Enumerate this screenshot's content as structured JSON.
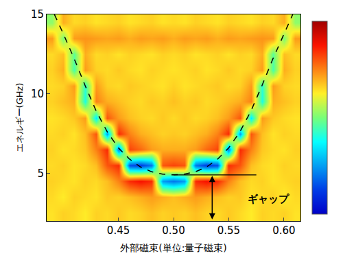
{
  "chart_data": {
    "type": "heatmap",
    "x_label": "外部磁束(単位:量子磁束)",
    "y_label": "エネルギー(GHz)",
    "x": [
      0.39,
      0.4,
      0.41,
      0.42,
      0.43,
      0.44,
      0.45,
      0.46,
      0.47,
      0.48,
      0.49,
      0.5,
      0.51,
      0.52,
      0.53,
      0.54,
      0.55,
      0.56,
      0.57,
      0.58,
      0.59,
      0.6,
      0.61
    ],
    "y": [
      2.5,
      3.5,
      4.5,
      5.5,
      6.5,
      7.5,
      8.5,
      9.5,
      10.5,
      11.5,
      12.5,
      13.5,
      14.5
    ],
    "z": [
      [
        64,
        66,
        65,
        63,
        66,
        65,
        67,
        65,
        66,
        68,
        66,
        67,
        66,
        68,
        66,
        65,
        67,
        65,
        63,
        66,
        65,
        66,
        64
      ],
      [
        65,
        63,
        66,
        65,
        64,
        67,
        66,
        68,
        70,
        72,
        70,
        68,
        70,
        72,
        70,
        68,
        66,
        67,
        64,
        65,
        66,
        63,
        65
      ],
      [
        66,
        65,
        64,
        66,
        65,
        68,
        75,
        85,
        88,
        85,
        25,
        20,
        25,
        85,
        88,
        85,
        75,
        68,
        65,
        66,
        64,
        65,
        66
      ],
      [
        65,
        66,
        64,
        65,
        68,
        80,
        85,
        15,
        12,
        20,
        80,
        82,
        80,
        20,
        12,
        15,
        85,
        80,
        68,
        65,
        64,
        66,
        65
      ],
      [
        66,
        64,
        65,
        67,
        75,
        85,
        20,
        82,
        78,
        72,
        70,
        70,
        70,
        72,
        78,
        82,
        20,
        85,
        75,
        67,
        65,
        64,
        66
      ],
      [
        65,
        66,
        64,
        68,
        80,
        25,
        85,
        75,
        70,
        68,
        66,
        67,
        66,
        68,
        70,
        75,
        85,
        25,
        80,
        68,
        64,
        66,
        65
      ],
      [
        64,
        65,
        67,
        72,
        35,
        80,
        72,
        68,
        66,
        65,
        67,
        65,
        67,
        65,
        66,
        68,
        72,
        80,
        35,
        72,
        67,
        65,
        64
      ],
      [
        66,
        68,
        70,
        40,
        75,
        70,
        68,
        66,
        65,
        67,
        66,
        68,
        66,
        67,
        65,
        66,
        68,
        70,
        75,
        40,
        70,
        68,
        66
      ],
      [
        65,
        66,
        72,
        42,
        72,
        66,
        65,
        67,
        66,
        65,
        64,
        66,
        64,
        65,
        66,
        67,
        65,
        66,
        72,
        42,
        72,
        66,
        65
      ],
      [
        66,
        70,
        45,
        72,
        66,
        65,
        67,
        65,
        64,
        66,
        65,
        64,
        65,
        66,
        64,
        65,
        67,
        65,
        66,
        72,
        45,
        70,
        66
      ],
      [
        65,
        68,
        47,
        70,
        65,
        66,
        64,
        66,
        65,
        64,
        66,
        65,
        66,
        64,
        65,
        66,
        64,
        66,
        65,
        70,
        47,
        68,
        65
      ],
      [
        72,
        50,
        72,
        73,
        72,
        71,
        72,
        70,
        72,
        71,
        72,
        70,
        72,
        71,
        72,
        70,
        72,
        71,
        72,
        73,
        72,
        50,
        72
      ],
      [
        52,
        70,
        65,
        66,
        64,
        65,
        66,
        64,
        65,
        66,
        64,
        65,
        64,
        66,
        65,
        64,
        66,
        65,
        64,
        66,
        65,
        70,
        52
      ]
    ],
    "zlim": [
      0,
      100
    ],
    "xlim": [
      0.385,
      0.615
    ],
    "xticks": [
      0.45,
      {
        "value": 0.5,
        "label": "0.50"
      },
      0.55,
      {
        "value": 0.6,
        "label": "0.60"
      }
    ],
    "ylim": [
      2,
      15
    ],
    "yticks": [
      5,
      10,
      15
    ],
    "grid": false,
    "fit_line": {
      "x": [
        0.392,
        0.4,
        0.41,
        0.42,
        0.43,
        0.44,
        0.45,
        0.46,
        0.47,
        0.48,
        0.49,
        0.5,
        0.51,
        0.52,
        0.53,
        0.54,
        0.55,
        0.56,
        0.57,
        0.58,
        0.59,
        0.6,
        0.608
      ],
      "y": [
        15.0,
        13.8,
        12.2,
        10.5,
        8.9,
        7.6,
        6.6,
        5.9,
        5.4,
        5.1,
        4.95,
        4.9,
        4.95,
        5.1,
        5.4,
        5.9,
        6.6,
        7.6,
        8.9,
        10.5,
        12.2,
        13.8,
        15.0
      ],
      "line_style": "dashed",
      "color": "#000000"
    },
    "gap": {
      "label": "ギャップ",
      "x": 0.535,
      "y": 4.9,
      "y_end": 2.1,
      "line_start": 0.5,
      "line_end": 0.575,
      "label_x": 0.566,
      "label_y": 3.4
    }
  }
}
